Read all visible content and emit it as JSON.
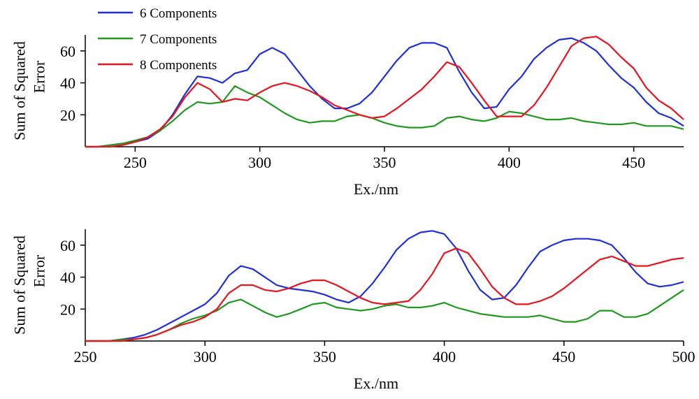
{
  "legend": {
    "placement": "top-left",
    "entries": [
      {
        "label": "6 Components",
        "color": "#1f2fe0"
      },
      {
        "label": "7 Components",
        "color": "#1e9a1e"
      },
      {
        "label": "8 Components",
        "color": "#e8141e"
      }
    ]
  },
  "chart_data": [
    {
      "type": "line",
      "xlabel": "Ex./nm",
      "ylabel": "Sum of Squared Error",
      "xlim": [
        230,
        470
      ],
      "ylim": [
        0,
        70
      ],
      "xticks": [
        250,
        300,
        350,
        400,
        450
      ],
      "yticks": [
        20,
        40,
        60
      ],
      "grid": false,
      "series": [
        {
          "name": "6 Components",
          "color": "#1f2fe0",
          "x": [
            230,
            235,
            240,
            245,
            250,
            255,
            260,
            265,
            270,
            275,
            280,
            285,
            290,
            295,
            300,
            305,
            310,
            315,
            320,
            325,
            330,
            335,
            340,
            345,
            350,
            355,
            360,
            365,
            370,
            375,
            380,
            385,
            390,
            395,
            400,
            405,
            410,
            415,
            420,
            425,
            430,
            435,
            440,
            445,
            450,
            455,
            460,
            465,
            470
          ],
          "y": [
            0,
            0,
            1,
            2,
            3,
            5,
            10,
            20,
            33,
            44,
            43,
            40,
            46,
            48,
            58,
            62,
            58,
            48,
            38,
            30,
            24,
            24,
            27,
            34,
            44,
            54,
            62,
            65,
            65,
            62,
            47,
            34,
            24,
            25,
            36,
            44,
            55,
            62,
            67,
            68,
            65,
            60,
            51,
            43,
            37,
            28,
            21,
            18,
            13
          ]
        },
        {
          "name": "7 Components",
          "color": "#1e9a1e",
          "x": [
            230,
            235,
            240,
            245,
            250,
            255,
            260,
            265,
            270,
            275,
            280,
            285,
            290,
            295,
            300,
            305,
            310,
            315,
            320,
            325,
            330,
            335,
            340,
            345,
            350,
            355,
            360,
            365,
            370,
            375,
            380,
            385,
            390,
            395,
            400,
            405,
            410,
            415,
            420,
            425,
            430,
            435,
            440,
            445,
            450,
            455,
            460,
            465,
            470
          ],
          "y": [
            0,
            0,
            1,
            2,
            4,
            6,
            10,
            16,
            23,
            28,
            27,
            28,
            38,
            34,
            31,
            26,
            21,
            17,
            15,
            16,
            16,
            19,
            20,
            18,
            15,
            13,
            12,
            12,
            13,
            18,
            19,
            17,
            16,
            18,
            22,
            21,
            19,
            17,
            17,
            18,
            16,
            15,
            14,
            14,
            15,
            13,
            13,
            13,
            11
          ]
        },
        {
          "name": "8 Components",
          "color": "#e8141e",
          "x": [
            230,
            235,
            240,
            245,
            250,
            255,
            260,
            265,
            270,
            275,
            280,
            285,
            290,
            295,
            300,
            305,
            310,
            315,
            320,
            325,
            330,
            335,
            340,
            345,
            350,
            355,
            360,
            365,
            370,
            375,
            380,
            385,
            390,
            395,
            400,
            405,
            410,
            415,
            420,
            425,
            430,
            435,
            440,
            445,
            450,
            455,
            460,
            465,
            470
          ],
          "y": [
            0,
            0,
            0,
            1,
            3,
            6,
            11,
            19,
            31,
            40,
            36,
            28,
            30,
            29,
            34,
            38,
            40,
            38,
            35,
            31,
            26,
            23,
            20,
            18,
            19,
            24,
            30,
            36,
            44,
            53,
            50,
            40,
            29,
            19,
            19,
            19,
            26,
            37,
            50,
            63,
            68,
            69,
            64,
            56,
            49,
            37,
            29,
            24,
            17
          ]
        }
      ]
    },
    {
      "type": "line",
      "xlabel": "Ex./nm",
      "ylabel": "Sum of Squared Error",
      "xlim": [
        250,
        500
      ],
      "ylim": [
        0,
        70
      ],
      "xticks": [
        250,
        300,
        350,
        400,
        450,
        500
      ],
      "yticks": [
        20,
        40,
        60
      ],
      "grid": false,
      "series": [
        {
          "name": "6 Components",
          "color": "#1f2fe0",
          "x": [
            250,
            255,
            260,
            265,
            270,
            275,
            280,
            285,
            290,
            295,
            300,
            305,
            310,
            315,
            320,
            325,
            330,
            335,
            340,
            345,
            350,
            355,
            360,
            365,
            370,
            375,
            380,
            385,
            390,
            395,
            400,
            405,
            410,
            415,
            420,
            425,
            430,
            435,
            440,
            445,
            450,
            455,
            460,
            465,
            470,
            475,
            480,
            485,
            490,
            495,
            500
          ],
          "y": [
            0,
            0,
            0,
            1,
            2,
            4,
            7,
            11,
            15,
            19,
            23,
            30,
            41,
            47,
            45,
            40,
            35,
            33,
            32,
            31,
            29,
            26,
            24,
            28,
            36,
            46,
            57,
            64,
            68,
            69,
            67,
            58,
            44,
            32,
            26,
            27,
            35,
            46,
            56,
            60,
            63,
            64,
            64,
            63,
            60,
            52,
            43,
            36,
            34,
            35,
            37
          ]
        },
        {
          "name": "7 Components",
          "color": "#1e9a1e",
          "x": [
            250,
            255,
            260,
            265,
            270,
            275,
            280,
            285,
            290,
            295,
            300,
            305,
            310,
            315,
            320,
            325,
            330,
            335,
            340,
            345,
            350,
            355,
            360,
            365,
            370,
            375,
            380,
            385,
            390,
            395,
            400,
            405,
            410,
            415,
            420,
            425,
            430,
            435,
            440,
            445,
            450,
            455,
            460,
            465,
            470,
            475,
            480,
            485,
            490,
            495,
            500
          ],
          "y": [
            0,
            0,
            0,
            1,
            1,
            2,
            4,
            7,
            11,
            14,
            16,
            19,
            24,
            26,
            22,
            18,
            15,
            17,
            20,
            23,
            24,
            21,
            20,
            19,
            20,
            22,
            23,
            21,
            21,
            22,
            24,
            21,
            19,
            17,
            16,
            15,
            15,
            15,
            16,
            14,
            12,
            12,
            14,
            19,
            19,
            15,
            15,
            17,
            22,
            27,
            32
          ]
        },
        {
          "name": "8 Components",
          "color": "#e8141e",
          "x": [
            250,
            255,
            260,
            265,
            270,
            275,
            280,
            285,
            290,
            295,
            300,
            305,
            310,
            315,
            320,
            325,
            330,
            335,
            340,
            345,
            350,
            355,
            360,
            365,
            370,
            375,
            380,
            385,
            390,
            395,
            400,
            405,
            410,
            415,
            420,
            425,
            430,
            435,
            440,
            445,
            450,
            455,
            460,
            465,
            470,
            475,
            480,
            485,
            490,
            495,
            500
          ],
          "y": [
            0,
            0,
            0,
            0,
            1,
            2,
            4,
            7,
            10,
            12,
            15,
            20,
            30,
            35,
            35,
            32,
            31,
            33,
            36,
            38,
            38,
            35,
            31,
            27,
            24,
            23,
            24,
            25,
            32,
            42,
            55,
            58,
            55,
            45,
            34,
            27,
            23,
            23,
            25,
            28,
            33,
            39,
            45,
            51,
            53,
            50,
            47,
            47,
            49,
            51,
            52
          ]
        }
      ]
    }
  ]
}
